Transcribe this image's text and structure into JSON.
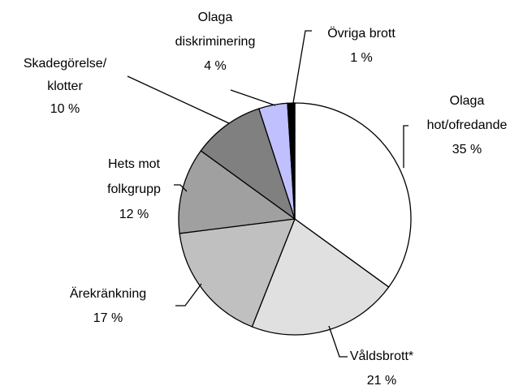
{
  "chart_data": {
    "type": "pie",
    "categories": [
      "Olaga\nhot/ofredande",
      "Våldsbrott*",
      "Ärekränkning",
      "Hets mot\nfolkgrupp",
      "Skadegörelse/\nklotter",
      "Olaga\ndiskriminering",
      "Övriga brott"
    ],
    "values": [
      35,
      21,
      17,
      12,
      10,
      4,
      1
    ],
    "value_labels": [
      "35 %",
      "21 %",
      "17 %",
      "12 %",
      "10 %",
      "4 %",
      "1 %"
    ],
    "colors": [
      "#ffffff",
      "#e0e0e0",
      "#c0c0c0",
      "#a0a0a0",
      "#808080",
      "#c0c0ff",
      "#000000"
    ]
  }
}
